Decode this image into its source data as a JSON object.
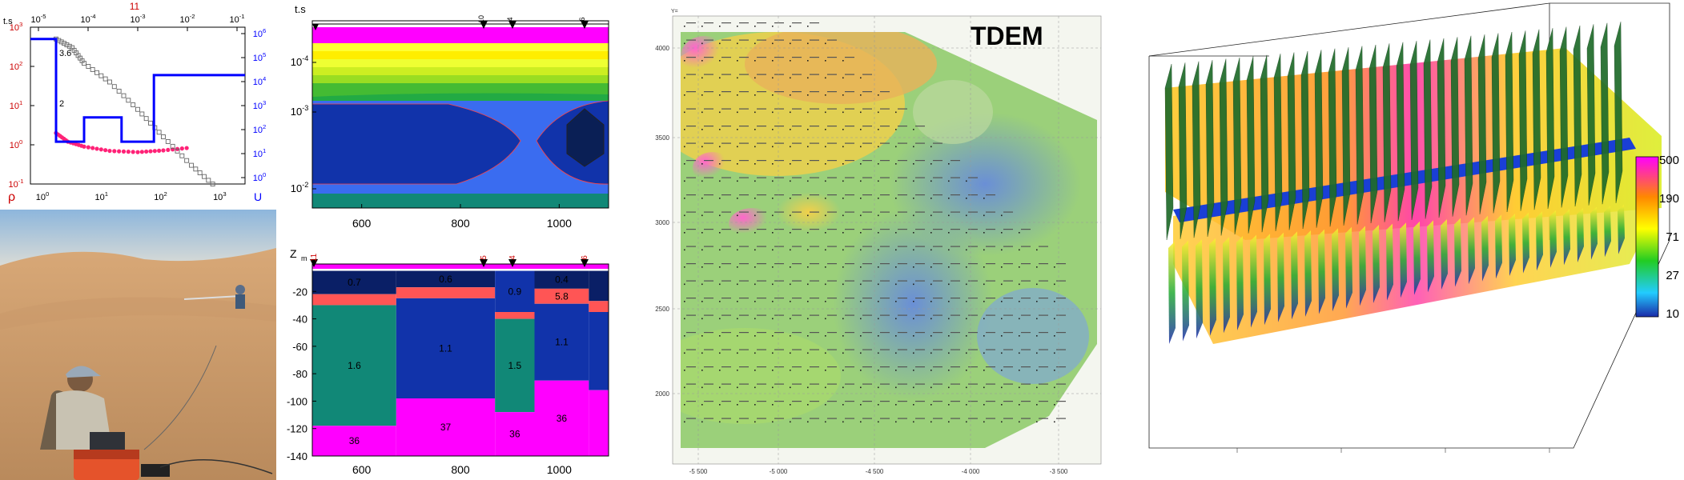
{
  "sounding_curve": {
    "top_axis_label": "t.s",
    "top_ticks": [
      "10",
      "10",
      "10",
      "10",
      "10"
    ],
    "top_tick_exps": [
      "-5",
      "-4",
      "-3",
      "-2",
      "-1"
    ],
    "sounding_id": "11",
    "left_ticks": [
      "10",
      "10",
      "10",
      "10",
      "10"
    ],
    "left_tick_exps": [
      "3",
      "2",
      "1",
      "0",
      "-1"
    ],
    "right_ticks": [
      "10",
      "10",
      "10",
      "10",
      "10",
      "10",
      "10"
    ],
    "right_tick_exps": [
      "6",
      "5",
      "4",
      "3",
      "2",
      "1",
      "0"
    ],
    "bottom_ticks": [
      "10",
      "10",
      "10",
      "10"
    ],
    "bottom_tick_exps": [
      "0",
      "1",
      "2",
      "3"
    ],
    "rho_label": "ρ",
    "u_label": "U",
    "curve_label_a": "3.6",
    "curve_label_b": "2"
  },
  "photo": {
    "scene": "field TDEM survey in sand dunes"
  },
  "time_section": {
    "y_axis_label": "t.s",
    "y_ticks": [
      "10",
      "10",
      "10"
    ],
    "y_tick_exps": [
      "-4",
      "-3",
      "-2"
    ],
    "x_ticks": [
      "600",
      "800",
      "1000"
    ],
    "stations": [
      "10",
      "4",
      "6"
    ],
    "colors": {
      "magenta": "#ff00ff",
      "yellow": "#ffff00",
      "green": "#22bb22",
      "teal": "#118877",
      "blue": "#1133aa",
      "dark": "#0a1f55"
    }
  },
  "depth_section": {
    "y_axis_label": "Z",
    "y_axis_sub": "m",
    "y_ticks": [
      "-20",
      "-40",
      "-60",
      "-80",
      "-100",
      "-120",
      "-140"
    ],
    "x_ticks": [
      "600",
      "800",
      "1000"
    ],
    "stations": [
      "11",
      "5",
      "4",
      "6"
    ],
    "layer_values": [
      "0.7",
      "0.6",
      "0.9",
      "0.4",
      "5.8",
      "1.6",
      "1.1",
      "1.5",
      "1.1",
      "36",
      "37",
      "36",
      "36"
    ]
  },
  "map": {
    "title": "TDEM",
    "y_axis_top_label": "Y=",
    "x_ticks": [
      "-5 500",
      "-5 000",
      "-4 500",
      "-4 000",
      "-3 500"
    ],
    "y_ticks": [
      "4000",
      "3500",
      "3000",
      "2500",
      "2000"
    ]
  },
  "volume": {
    "colorbar_ticks": [
      "500",
      "190",
      "71",
      "27",
      "10"
    ]
  },
  "chart_data": [
    {
      "type": "line",
      "title": "",
      "xlabel": "t.s",
      "ylabel": "ρ",
      "y2label": "U",
      "x_scale": "log",
      "y_scale": "log",
      "xlim": [
        1e-05,
        0.1
      ],
      "ylim": [
        0.1,
        1000
      ],
      "series": [
        {
          "name": "",
          "color": "#ff2277",
          "marker": "circle",
          "x": [
            3e-05,
            5e-05,
            0.0001,
            0.0003,
            0.001,
            0.003,
            0.01
          ],
          "y": [
            2.0,
            1.2,
            0.9,
            0.7,
            0.65,
            0.72,
            0.85
          ]
        },
        {
          "name": "",
          "color": "#666666",
          "marker": "square",
          "x": [
            3e-05,
            6e-05,
            0.0001,
            0.0003,
            0.001,
            0.003,
            0.01,
            0.03
          ],
          "y": [
            500,
            300,
            120,
            40,
            8,
            1.6,
            0.3,
            0.08
          ]
        },
        {
          "name": "",
          "color": "#0000ff",
          "marker": "none",
          "kind": "step",
          "x": [
            1e-05,
            3e-05,
            3e-05,
            0.0001,
            0.0001,
            0.0005,
            0.0005,
            0.002,
            0.002,
            0.1
          ],
          "y": [
            500,
            500,
            1.2,
            1.2,
            5,
            5,
            1.2,
            1.2,
            60,
            60
          ]
        }
      ]
    },
    {
      "type": "heatmap",
      "title": "",
      "xlabel": "",
      "ylabel": "t.s",
      "xlim": [
        500,
        1100
      ],
      "y_scale": "log",
      "ylim": [
        2e-05,
        0.03
      ],
      "bands_top_to_bottom": [
        "magenta",
        "yellow",
        "green",
        "teal",
        "blue",
        "dark"
      ]
    },
    {
      "type": "bar",
      "title": "",
      "ylabel": "Zm",
      "xlim": [
        500,
        1100
      ],
      "ylim": [
        -140,
        0
      ],
      "columns": [
        {
          "x_start": 500,
          "x_end": 670,
          "layers": [
            {
              "top": -5,
              "bottom": -22,
              "rho": 0.7,
              "color": "#0a1f66"
            },
            {
              "top": -22,
              "bottom": -30,
              "rho": null,
              "color": "#ff5555"
            },
            {
              "top": -30,
              "bottom": -118,
              "rho": 1.6,
              "color": "#118877"
            },
            {
              "top": -118,
              "bottom": -140,
              "rho": 36,
              "color": "#ff00ff"
            }
          ]
        },
        {
          "x_start": 670,
          "x_end": 870,
          "layers": [
            {
              "top": -5,
              "bottom": -17,
              "rho": 0.6,
              "color": "#0a1f66"
            },
            {
              "top": -17,
              "bottom": -25,
              "rho": null,
              "color": "#ff5555"
            },
            {
              "top": -25,
              "bottom": -98,
              "rho": 1.1,
              "color": "#1133aa"
            },
            {
              "top": -98,
              "bottom": -140,
              "rho": 37,
              "color": "#ff00ff"
            }
          ]
        },
        {
          "x_start": 870,
          "x_end": 950,
          "layers": [
            {
              "top": -5,
              "bottom": -35,
              "rho": 0.9,
              "color": "#1133aa"
            },
            {
              "top": -35,
              "bottom": -40,
              "rho": null,
              "color": "#ff5555"
            },
            {
              "top": -40,
              "bottom": -108,
              "rho": 1.5,
              "color": "#118877"
            },
            {
              "top": -108,
              "bottom": -140,
              "rho": 36,
              "color": "#ff00ff"
            }
          ]
        },
        {
          "x_start": 950,
          "x_end": 1060,
          "layers": [
            {
              "top": -5,
              "bottom": -18,
              "rho": 0.4,
              "color": "#0a1f66"
            },
            {
              "top": -18,
              "bottom": -29,
              "rho": 5.8,
              "color": "#ff5555"
            },
            {
              "top": -29,
              "bottom": -85,
              "rho": 1.1,
              "color": "#1133aa"
            },
            {
              "top": -85,
              "bottom": -140,
              "rho": 36,
              "color": "#ff00ff"
            }
          ]
        },
        {
          "x_start": 1060,
          "x_end": 1100,
          "layers": [
            {
              "top": -5,
              "bottom": -27,
              "rho": null,
              "color": "#0a1f66"
            },
            {
              "top": -27,
              "bottom": -35,
              "rho": null,
              "color": "#ff5555"
            },
            {
              "top": -35,
              "bottom": -92,
              "rho": null,
              "color": "#1133aa"
            },
            {
              "top": -92,
              "bottom": -140,
              "rho": null,
              "color": "#ff00ff"
            }
          ]
        }
      ]
    },
    {
      "type": "heatmap",
      "title": "TDEM",
      "xlim": [
        -5700,
        -3300
      ],
      "ylim": [
        1700,
        4150
      ]
    },
    {
      "type": "heatmap",
      "title": "",
      "colorbar": {
        "scale": "log",
        "range": [
          10,
          500
        ],
        "ticks": [
          500,
          190,
          71,
          27,
          10
        ]
      }
    }
  ]
}
